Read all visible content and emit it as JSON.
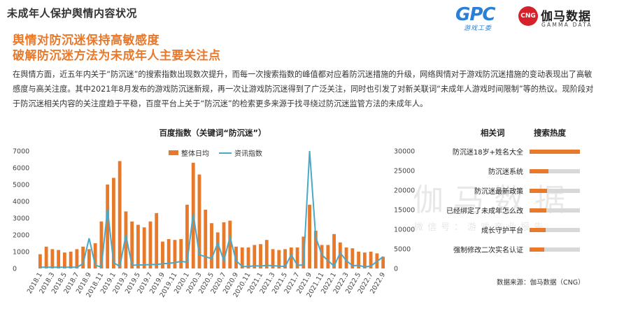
{
  "page": {
    "title": "未成年人保护舆情内容状况",
    "headline_1": "舆情对防沉迷保持高敏感度",
    "headline_2": "破解防沉迷方法为未成年人主要关注点",
    "intro": "在舆情方面，近五年内关于“防沉迷”的搜索指数出现数次提升，而每一次搜索指数的峰值都对应着防沉迷措施的升级，网络舆情对于游戏防沉迷措施的变动表现出了高敏感度与高关注度。其中2021年8月发布的游戏防沉迷新规，再一次让游戏防沉迷得到了广泛关注，同时也引发了对新关联词“未成年人游戏时间限制”等的热议。现阶段对于防沉迷相关内容的关注度趋于平稳，百度平台上关于“防沉迷”的检索更多来源于找寻绕过防沉迷监管方法的未成年人。",
    "source": "数据来源：伽马数据（CNG）"
  },
  "logos": {
    "gpc_letters": "GPC",
    "gpc_sub": "游戏工委",
    "cng_badge": "CNG",
    "gamma_cn": "伽马数据",
    "gamma_en": "GAMMA DATA"
  },
  "watermark": {
    "main": "伽马数据",
    "sub": "微信号：游戏产业报告"
  },
  "colors": {
    "accent": "#e8792b",
    "line": "#4aa8c8",
    "track": "#d8d8d8"
  },
  "chart_data": [
    {
      "type": "bar",
      "title": "百度指数（关键词“防沉迷”）",
      "categories": [
        "2018.1",
        "2018.2",
        "2018.3",
        "2018.4",
        "2018.5",
        "2018.6",
        "2018.7",
        "2018.8",
        "2018.9",
        "2018.10",
        "2018.11",
        "2018.12",
        "2019.1",
        "2019.2",
        "2019.3",
        "2019.4",
        "2019.5",
        "2019.6",
        "2019.7",
        "2019.8",
        "2019.9",
        "2019.10",
        "2019.11",
        "2019.12",
        "2020.1",
        "2020.2",
        "2020.3",
        "2020.4",
        "2020.5",
        "2020.6",
        "2020.7",
        "2020.8",
        "2020.9",
        "2020.10",
        "2020.11",
        "2020.12",
        "2021.1",
        "2021.2",
        "2021.3",
        "2021.4",
        "2021.5",
        "2021.6",
        "2021.7",
        "2021.8",
        "2021.9",
        "2021.10",
        "2021.11",
        "2021.12",
        "2022.1",
        "2022.2",
        "2022.3",
        "2022.4",
        "2022.5",
        "2022.6",
        "2022.7",
        "2022.8",
        "2022.9"
      ],
      "tick_labels": [
        "2018.1",
        "2018.3",
        "2018.5",
        "2018.7",
        "2018.9",
        "2018.11",
        "2019.1",
        "2019.3",
        "2019.5",
        "2019.7",
        "2019.9",
        "2019.11",
        "2020.1",
        "2020.3",
        "2020.5",
        "2020.7",
        "2020.9",
        "2020.11",
        "2021.1",
        "2021.3",
        "2021.5",
        "2021.7",
        "2021.9",
        "2021.11",
        "2022.1",
        "2022.3",
        "2022.5",
        "2022.7",
        "2022.9"
      ],
      "series": [
        {
          "name": "整体日均",
          "type": "bar",
          "axis": "left",
          "values": [
            850,
            1300,
            1150,
            1100,
            950,
            1000,
            1150,
            1300,
            1150,
            1500,
            2800,
            5000,
            5400,
            6400,
            3400,
            2800,
            2600,
            2450,
            2800,
            3300,
            1600,
            1750,
            1700,
            1750,
            3800,
            6300,
            5600,
            3500,
            2700,
            2150,
            2750,
            2850,
            1300,
            1250,
            1250,
            1400,
            1450,
            1700,
            1150,
            1100,
            1150,
            1250,
            1250,
            1900,
            3800,
            2250,
            1400,
            1400,
            2050,
            1550,
            1250,
            1200,
            1000,
            950,
            1000,
            900,
            700
          ]
        },
        {
          "name": "资讯指数",
          "type": "line",
          "axis": "right",
          "values": [
            300,
            300,
            300,
            300,
            300,
            300,
            300,
            1200,
            7700,
            800,
            400,
            15000,
            1500,
            500,
            8500,
            800,
            900,
            900,
            1000,
            1000,
            1200,
            1300,
            1500,
            1800,
            1600,
            14000,
            3500,
            3000,
            2500,
            6500,
            2000,
            8000,
            2000,
            500,
            500,
            700,
            600,
            800,
            700,
            600,
            500,
            3500,
            800,
            900,
            30000,
            8000,
            3500,
            2000,
            600,
            4000,
            2000,
            700,
            800,
            400,
            600,
            1800,
            3000
          ]
        }
      ],
      "ylim_left": [
        0,
        7000
      ],
      "yticks_left": [
        0,
        1000,
        2000,
        3000,
        4000,
        5000,
        6000,
        7000
      ],
      "ylim_right": [
        0,
        30000
      ],
      "yticks_right": [
        0,
        5000,
        10000,
        15000,
        20000,
        25000,
        30000
      ],
      "legend": "top-center"
    },
    {
      "type": "bar",
      "orientation": "horizontal",
      "header_keyword": "相关词",
      "header_value": "搜索热度",
      "categories": [
        "防沉迷18岁+姓名大全",
        "防沉迷系统",
        "防沉迷最新政策",
        "已经绑定了未成年怎么改",
        "成长守护平台",
        "强制修改二次实名认证"
      ],
      "values": [
        100,
        37,
        35,
        33,
        32,
        29
      ],
      "max": 100
    }
  ]
}
